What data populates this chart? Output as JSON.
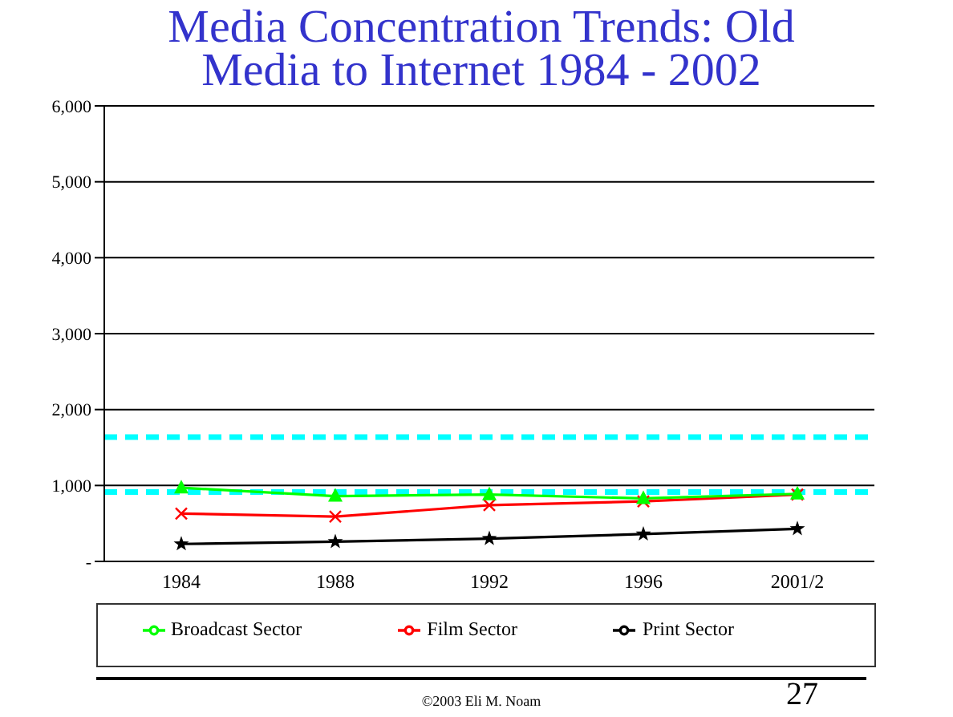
{
  "chart_data": {
    "type": "line",
    "title": "Media Concentration Trends: Old Media to Internet 1984 - 2002",
    "categories": [
      "1984",
      "1988",
      "1992",
      "1996",
      "2001/2"
    ],
    "series": [
      {
        "name": "Broadcast Sector",
        "color": "#00ff00",
        "marker": "triangle",
        "values": [
          970,
          860,
          880,
          830,
          890
        ]
      },
      {
        "name": "Film Sector",
        "color": "#ff0000",
        "marker": "cross",
        "values": [
          630,
          590,
          740,
          790,
          880
        ]
      },
      {
        "name": "Print Sector",
        "color": "#000000",
        "marker": "star",
        "values": [
          230,
          260,
          300,
          360,
          430
        ]
      }
    ],
    "ylim": [
      0,
      6000
    ],
    "yticks": [
      {
        "value": 0,
        "label": "-"
      },
      {
        "value": 1000,
        "label": "1,000"
      },
      {
        "value": 2000,
        "label": "2,000"
      },
      {
        "value": 3000,
        "label": "3,000"
      },
      {
        "value": 4000,
        "label": "4,000"
      },
      {
        "value": 5000,
        "label": "5,000"
      },
      {
        "value": 6000,
        "label": "6,000"
      }
    ],
    "ref_lines": [
      {
        "axis": "y",
        "value": 1638,
        "color": "#00ffff",
        "line_style": "dashed"
      },
      {
        "axis": "y",
        "value": 915,
        "color": "#00ffff",
        "line_style": "dashed"
      }
    ],
    "grid": "y",
    "legend": "bottom",
    "line_style": "solid",
    "annotations": [
      "©2003 Eli M. Noam",
      "27"
    ]
  }
}
